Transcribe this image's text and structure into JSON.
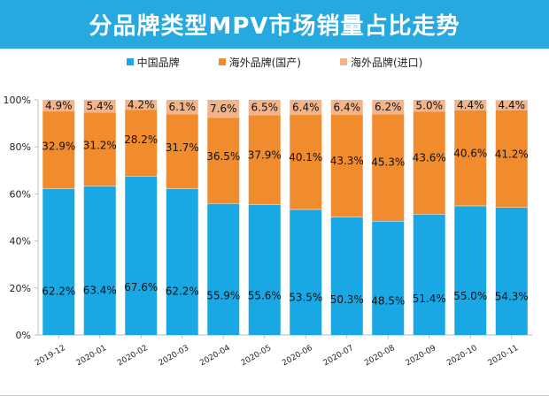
{
  "title": "分品牌类型MPV市场销量占比走势",
  "colors": {
    "title_bg": "#27a9df",
    "domestic": "#1aa8e4",
    "foreign_local": "#f08b2e",
    "foreign_import": "#f3b489",
    "axis": "#bdbdbd"
  },
  "legend": {
    "domestic": "中国品牌",
    "foreign_local": "海外品牌(国产)",
    "foreign_import": "海外品牌(进口)"
  },
  "chart_data": {
    "type": "bar",
    "stacked": true,
    "categories": [
      "2019-12",
      "2020-01",
      "2020-02",
      "2020-03",
      "2020-04",
      "2020-05",
      "2020-06",
      "2020-07",
      "2020-08",
      "2020-09",
      "2020-10",
      "2020-11"
    ],
    "series": [
      {
        "name": "中国品牌",
        "values": [
          62.2,
          63.4,
          67.6,
          62.2,
          55.9,
          55.6,
          53.5,
          50.3,
          48.5,
          51.4,
          55.0,
          54.3
        ]
      },
      {
        "name": "海外品牌(国产)",
        "values": [
          32.9,
          31.2,
          28.2,
          31.7,
          36.5,
          37.9,
          40.1,
          43.3,
          45.3,
          43.6,
          40.6,
          41.2
        ]
      },
      {
        "name": "海外品牌(进口)",
        "values": [
          4.9,
          5.4,
          4.2,
          6.1,
          7.6,
          6.5,
          6.4,
          6.4,
          6.2,
          5.0,
          4.4,
          4.4
        ]
      }
    ],
    "yticks": [
      "0%",
      "20%",
      "40%",
      "60%",
      "80%",
      "100%"
    ],
    "ylim": [
      0,
      100
    ],
    "grid": false,
    "legend_position": "top"
  }
}
